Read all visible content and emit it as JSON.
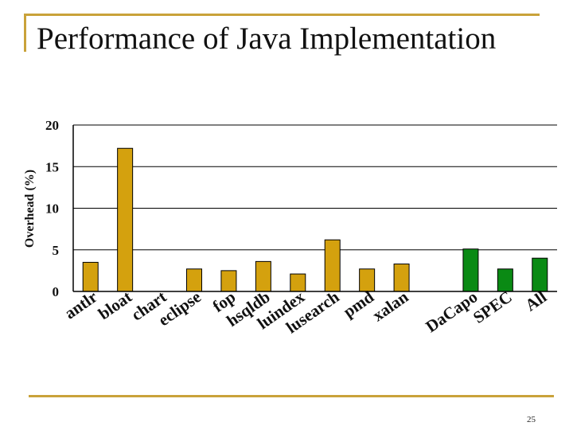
{
  "slide": {
    "title": "Performance of Java Implementation",
    "page_number": "25"
  },
  "colors": {
    "accent_line": "#c9a23a",
    "bar_gold": "#d4a10e",
    "bar_green": "#0a8a14"
  },
  "chart_data": {
    "type": "bar",
    "title": "",
    "xlabel": "",
    "ylabel": "Overhead (%)",
    "ylim": [
      0,
      20
    ],
    "yticks": [
      0,
      5,
      10,
      15,
      20
    ],
    "grid": true,
    "categories": [
      "antlr",
      "bloat",
      "chart",
      "eclipse",
      "fop",
      "hsqldb",
      "luindex",
      "lusearch",
      "pmd",
      "xalan",
      "",
      "DaCapo",
      "SPEC",
      "All"
    ],
    "values": [
      3.5,
      17.2,
      null,
      2.7,
      2.5,
      3.6,
      2.1,
      6.2,
      2.7,
      3.3,
      null,
      5.1,
      2.7,
      4.0
    ],
    "bar_colors": [
      "gold",
      "gold",
      "gold",
      "gold",
      "gold",
      "gold",
      "gold",
      "gold",
      "gold",
      "gold",
      "gold",
      "green",
      "green",
      "green"
    ]
  }
}
